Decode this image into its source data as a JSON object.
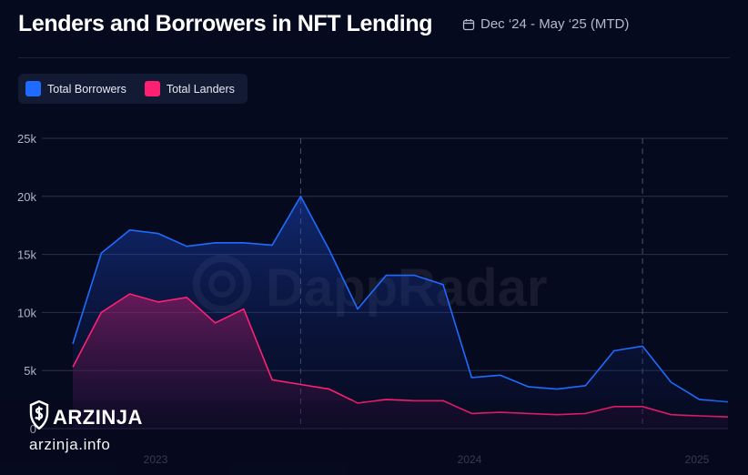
{
  "header": {
    "title": "Lenders and Borrowers in NFT Lending",
    "date_range": "Dec ‘24 - May ‘25 (MTD)",
    "date_icon": "calendar-icon"
  },
  "watermarks": {
    "center_logo": "DappRadar",
    "brand": "ARZINJA",
    "url": "arzinja.info"
  },
  "colors": {
    "borrowers": "#1f6bff",
    "lenders": "#ff1f73",
    "background": "#060a1e"
  },
  "chart_data": {
    "type": "area",
    "title": "Lenders and Borrowers in NFT Lending",
    "ylim": [
      0,
      25000
    ],
    "y_ticks": [
      0,
      5000,
      10000,
      15000,
      20000,
      25000
    ],
    "y_tick_labels": [
      "0",
      "5k",
      "10k",
      "15k",
      "20k",
      "25k"
    ],
    "x_tick_labels": [
      "2023",
      "2024",
      "2025"
    ],
    "grid": true,
    "legend_position": "top-left",
    "series": [
      {
        "name": "Total Borrowers",
        "color": "#1f6bff",
        "values": [
          7300,
          15100,
          17100,
          16800,
          15700,
          16000,
          16000,
          15800,
          20000,
          15400,
          10300,
          13200,
          13200,
          12400,
          4400,
          4600,
          3600,
          3400,
          3700,
          6700,
          7100,
          4000,
          2500,
          2300
        ]
      },
      {
        "name": "Total Landers",
        "color": "#ff1f73",
        "values": [
          5300,
          10000,
          11600,
          10900,
          11300,
          9100,
          10300,
          4200,
          3800,
          3400,
          2200,
          2500,
          2400,
          2400,
          1300,
          1400,
          1300,
          1200,
          1300,
          1900,
          1900,
          1200,
          1100,
          1000
        ]
      }
    ]
  }
}
